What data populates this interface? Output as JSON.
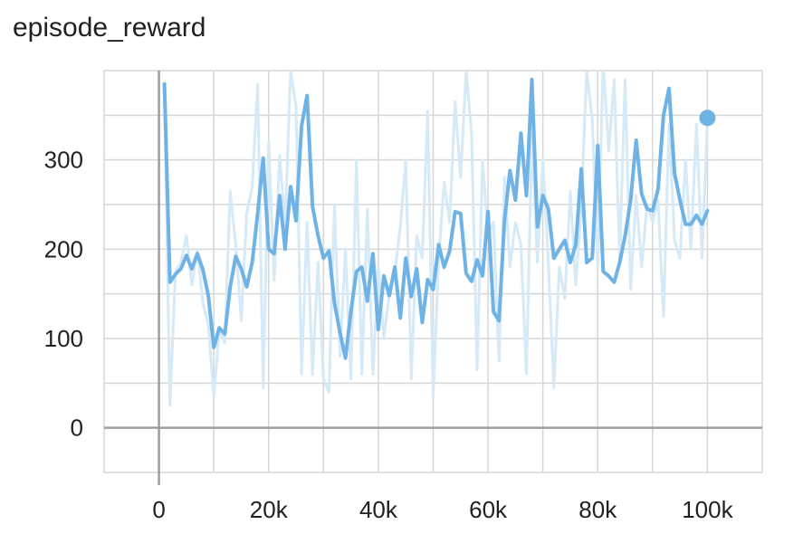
{
  "chart_data": {
    "type": "line",
    "title": "episode_reward",
    "xlabel": "",
    "ylabel": "",
    "xlim": [
      -10000,
      110000
    ],
    "ylim": [
      -50,
      400
    ],
    "grid": true,
    "x_ticks": [
      0,
      20000,
      40000,
      60000,
      80000,
      100000
    ],
    "x_tick_labels": [
      "0",
      "20k",
      "40k",
      "60k",
      "80k",
      "100k"
    ],
    "y_ticks": [
      0,
      100,
      200,
      300
    ],
    "y_tick_labels": [
      "0",
      "100",
      "200",
      "300"
    ],
    "colors": {
      "smoothed": "#6fb3e6",
      "raw": "#d5e9f7",
      "axis": "#9e9e9e",
      "grid": "#d6d6d6"
    },
    "series": [
      {
        "role": "raw",
        "x": [
          1000,
          2000,
          3000,
          4000,
          5000,
          6000,
          7000,
          8000,
          9000,
          10000,
          11000,
          12000,
          13000,
          14000,
          15000,
          16000,
          17000,
          18000,
          19000,
          20000,
          21000,
          22000,
          23000,
          24000,
          25000,
          26000,
          27000,
          28000,
          29000,
          30000,
          31000,
          32000,
          33000,
          34000,
          35000,
          36000,
          37000,
          38000,
          39000,
          40000,
          41000,
          42000,
          43000,
          44000,
          45000,
          46000,
          47000,
          48000,
          49000,
          50000,
          51000,
          52000,
          53000,
          54000,
          55000,
          56000,
          57000,
          58000,
          59000,
          60000,
          61000,
          62000,
          63000,
          64000,
          65000,
          66000,
          67000,
          68000,
          69000,
          70000,
          71000,
          72000,
          73000,
          74000,
          75000,
          76000,
          77000,
          78000,
          79000,
          80000,
          81000,
          82000,
          83000,
          84000,
          85000,
          86000,
          87000,
          88000,
          89000,
          90000,
          91000,
          92000,
          93000,
          94000,
          95000,
          96000,
          97000,
          98000,
          99000,
          100000
        ],
        "y": [
          380,
          25,
          175,
          185,
          215,
          160,
          200,
          140,
          115,
          35,
          110,
          95,
          265,
          205,
          120,
          240,
          270,
          385,
          45,
          320,
          165,
          305,
          225,
          400,
          360,
          60,
          230,
          60,
          185,
          55,
          40,
          250,
          80,
          200,
          55,
          300,
          60,
          245,
          60,
          180,
          100,
          150,
          175,
          225,
          300,
          55,
          215,
          190,
          355,
          35,
          190,
          275,
          230,
          365,
          280,
          400,
          330,
          65,
          300,
          215,
          230,
          75,
          280,
          180,
          230,
          205,
          60,
          330,
          185,
          300,
          185,
          45,
          180,
          145,
          265,
          160,
          250,
          400,
          345,
          180,
          410,
          310,
          390,
          190,
          390,
          155,
          260,
          180,
          250,
          230,
          255,
          125,
          340,
          210,
          190,
          300,
          200,
          340,
          190,
          345
        ]
      },
      {
        "role": "smoothed",
        "x": [
          1000,
          2000,
          3000,
          4000,
          5000,
          6000,
          7000,
          8000,
          9000,
          10000,
          11000,
          12000,
          13000,
          14000,
          15000,
          16000,
          17000,
          18000,
          19000,
          20000,
          21000,
          22000,
          23000,
          24000,
          25000,
          26000,
          27000,
          28000,
          29000,
          30000,
          31000,
          32000,
          33000,
          34000,
          35000,
          36000,
          37000,
          38000,
          39000,
          40000,
          41000,
          42000,
          43000,
          44000,
          45000,
          46000,
          47000,
          48000,
          49000,
          50000,
          51000,
          52000,
          53000,
          54000,
          55000,
          56000,
          57000,
          58000,
          59000,
          60000,
          61000,
          62000,
          63000,
          64000,
          65000,
          66000,
          67000,
          68000,
          69000,
          70000,
          71000,
          72000,
          73000,
          74000,
          75000,
          76000,
          77000,
          78000,
          79000,
          80000,
          81000,
          82000,
          83000,
          84000,
          85000,
          86000,
          87000,
          88000,
          89000,
          90000,
          91000,
          92000,
          93000,
          94000,
          95000,
          96000,
          97000,
          98000,
          99000,
          100000
        ],
        "y": [
          385,
          163,
          172,
          178,
          193,
          178,
          195,
          177,
          148,
          90,
          112,
          105,
          158,
          192,
          178,
          158,
          185,
          240,
          302,
          200,
          195,
          260,
          200,
          270,
          232,
          338,
          372,
          248,
          215,
          190,
          198,
          140,
          107,
          78,
          130,
          175,
          180,
          142,
          195,
          110,
          170,
          148,
          180,
          123,
          190,
          147,
          178,
          118,
          166,
          155,
          205,
          180,
          198,
          242,
          240,
          173,
          164,
          188,
          170,
          242,
          130,
          120,
          233,
          288,
          255,
          330,
          260,
          390,
          225,
          260,
          245,
          190,
          200,
          210,
          185,
          205,
          290,
          185,
          190,
          316,
          175,
          170,
          163,
          185,
          215,
          255,
          322,
          262,
          245,
          243,
          267,
          350,
          380,
          285,
          255,
          228,
          228,
          238,
          228,
          243
        ]
      }
    ],
    "endpoint": {
      "x": 100000,
      "y": 347
    }
  }
}
